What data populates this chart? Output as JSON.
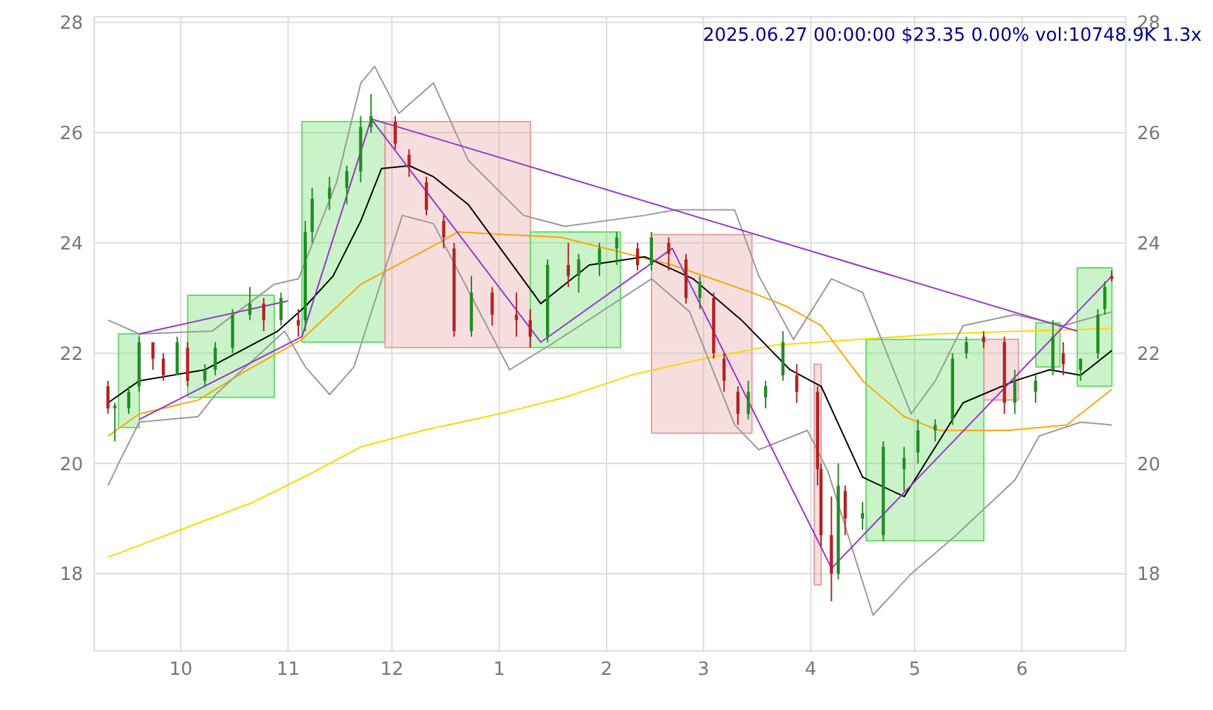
{
  "chart_data": {
    "type": "candlestick",
    "title": "2025.06.27 00:00:00 $23.35 0.00% vol:10748.9K 1.3x",
    "x": [
      "2024-09-10",
      "2024-09-12",
      "2024-09-16",
      "2024-09-19",
      "2024-09-23",
      "2024-09-26",
      "2024-09-30",
      "2024-10-03",
      "2024-10-08",
      "2024-10-11",
      "2024-10-16",
      "2024-10-21",
      "2024-10-25",
      "2024-10-30",
      "2024-11-04",
      "2024-11-06",
      "2024-11-08",
      "2024-11-13",
      "2024-11-18",
      "2024-11-22",
      "2024-11-25",
      "2024-12-02",
      "2024-12-06",
      "2024-12-11",
      "2024-12-16",
      "2024-12-19",
      "2024-12-24",
      "2024-12-30",
      "2025-01-06",
      "2025-01-10",
      "2025-01-15",
      "2025-01-21",
      "2025-01-24",
      "2025-01-30",
      "2025-02-04",
      "2025-02-10",
      "2025-02-14",
      "2025-02-19",
      "2025-02-24",
      "2025-02-28",
      "2025-03-04",
      "2025-03-07",
      "2025-03-11",
      "2025-03-14",
      "2025-03-19",
      "2025-03-24",
      "2025-03-28",
      "2025-04-03",
      "2025-04-04",
      "2025-04-07",
      "2025-04-09",
      "2025-04-11",
      "2025-04-16",
      "2025-04-22",
      "2025-04-28",
      "2025-05-02",
      "2025-05-07",
      "2025-05-12",
      "2025-05-16",
      "2025-05-21",
      "2025-05-27",
      "2025-05-30",
      "2025-06-05",
      "2025-06-10",
      "2025-06-13",
      "2025-06-18",
      "2025-06-23",
      "2025-06-25",
      "2025-06-27"
    ],
    "ohlc": [
      [
        21.4,
        21.5,
        20.9,
        21.0
      ],
      [
        21.0,
        21.1,
        20.4,
        21.05
      ],
      [
        21.0,
        21.4,
        20.9,
        21.3
      ],
      [
        21.4,
        22.3,
        21.3,
        22.2
      ],
      [
        22.2,
        22.2,
        21.7,
        21.9
      ],
      [
        21.9,
        22.0,
        21.5,
        21.6
      ],
      [
        21.6,
        22.3,
        21.6,
        22.2
      ],
      [
        22.1,
        22.2,
        21.4,
        21.5
      ],
      [
        21.5,
        21.8,
        21.4,
        21.7
      ],
      [
        21.7,
        22.2,
        21.6,
        22.1
      ],
      [
        22.1,
        22.8,
        22.0,
        22.7
      ],
      [
        22.7,
        23.2,
        22.6,
        22.9
      ],
      [
        22.9,
        23.0,
        22.4,
        22.6
      ],
      [
        22.6,
        23.1,
        22.5,
        23.0
      ],
      [
        22.6,
        22.8,
        22.3,
        22.5
      ],
      [
        22.6,
        24.4,
        22.4,
        24.2
      ],
      [
        24.2,
        25.0,
        24.0,
        24.8
      ],
      [
        24.8,
        25.2,
        24.6,
        25.0
      ],
      [
        25.0,
        25.4,
        24.7,
        25.3
      ],
      [
        25.3,
        26.3,
        25.1,
        26.1
      ],
      [
        26.1,
        26.7,
        26.0,
        26.3
      ],
      [
        26.2,
        26.3,
        25.7,
        25.8
      ],
      [
        25.6,
        25.7,
        25.2,
        25.4
      ],
      [
        25.1,
        25.2,
        24.5,
        24.6
      ],
      [
        24.4,
        24.5,
        23.9,
        24.1
      ],
      [
        23.9,
        24.0,
        22.3,
        22.4
      ],
      [
        22.4,
        23.4,
        22.3,
        23.1
      ],
      [
        23.1,
        23.2,
        22.5,
        22.7
      ],
      [
        22.7,
        23.1,
        22.3,
        22.6
      ],
      [
        22.6,
        22.8,
        22.1,
        22.3
      ],
      [
        22.3,
        23.7,
        22.2,
        23.6
      ],
      [
        23.6,
        24.0,
        23.2,
        23.4
      ],
      [
        23.4,
        23.8,
        23.1,
        23.7
      ],
      [
        23.6,
        24.0,
        23.4,
        23.9
      ],
      [
        23.9,
        24.2,
        23.6,
        24.1
      ],
      [
        23.9,
        24.0,
        23.5,
        23.6
      ],
      [
        23.6,
        24.2,
        23.5,
        24.1
      ],
      [
        24.0,
        24.1,
        23.5,
        23.8
      ],
      [
        23.7,
        23.8,
        22.9,
        23.0
      ],
      [
        23.0,
        23.4,
        22.8,
        23.3
      ],
      [
        23.0,
        23.1,
        21.9,
        22.0
      ],
      [
        21.9,
        22.0,
        21.3,
        21.5
      ],
      [
        21.3,
        21.4,
        20.7,
        20.9
      ],
      [
        20.9,
        21.5,
        20.8,
        21.3
      ],
      [
        21.2,
        21.5,
        21.0,
        21.4
      ],
      [
        21.6,
        22.4,
        21.5,
        22.2
      ],
      [
        21.6,
        21.8,
        21.1,
        21.3
      ],
      [
        21.3,
        21.4,
        19.6,
        19.9
      ],
      [
        19.9,
        20.0,
        18.5,
        18.7
      ],
      [
        18.7,
        19.4,
        17.5,
        18.0
      ],
      [
        18.0,
        20.0,
        17.9,
        19.6
      ],
      [
        19.5,
        19.6,
        18.7,
        19.0
      ],
      [
        19.0,
        19.3,
        18.8,
        19.1
      ],
      [
        18.7,
        20.4,
        18.6,
        20.3
      ],
      [
        19.9,
        20.3,
        19.5,
        20.1
      ],
      [
        20.2,
        20.8,
        20.0,
        20.6
      ],
      [
        20.6,
        20.8,
        20.4,
        20.7
      ],
      [
        20.8,
        22.0,
        20.7,
        21.9
      ],
      [
        22.0,
        22.3,
        21.9,
        22.2
      ],
      [
        22.3,
        22.4,
        22.1,
        22.2
      ],
      [
        22.2,
        22.3,
        20.9,
        21.1
      ],
      [
        21.1,
        21.7,
        20.9,
        21.5
      ],
      [
        21.3,
        21.6,
        21.1,
        21.5
      ],
      [
        21.7,
        22.6,
        21.6,
        22.3
      ],
      [
        22.0,
        22.2,
        21.6,
        21.8
      ],
      [
        21.7,
        21.9,
        21.5,
        21.9
      ],
      [
        22.0,
        22.8,
        21.9,
        22.7
      ],
      [
        22.8,
        23.3,
        22.7,
        23.2
      ],
      [
        23.4,
        23.5,
        23.3,
        23.35
      ]
    ],
    "colors": [
      "#b22222",
      "#228b22",
      "#228b22",
      "#228b22",
      "#b22222",
      "#b22222",
      "#228b22",
      "#b22222",
      "#228b22",
      "#228b22",
      "#228b22",
      "#228b22",
      "#b22222",
      "#228b22",
      "#b22222",
      "#228b22",
      "#228b22",
      "#228b22",
      "#228b22",
      "#228b22",
      "#228b22",
      "#b22222",
      "#b22222",
      "#b22222",
      "#b22222",
      "#b22222",
      "#228b22",
      "#b22222",
      "#b22222",
      "#b22222",
      "#228b22",
      "#b22222",
      "#228b22",
      "#228b22",
      "#228b22",
      "#b22222",
      "#228b22",
      "#b22222",
      "#b22222",
      "#228b22",
      "#b22222",
      "#b22222",
      "#b22222",
      "#228b22",
      "#228b22",
      "#228b22",
      "#b22222",
      "#b22222",
      "#b22222",
      "#b22222",
      "#228b22",
      "#b22222",
      "#228b22",
      "#228b22",
      "#228b22",
      "#228b22",
      "#228b22",
      "#228b22",
      "#228b22",
      "#b22222",
      "#b22222",
      "#228b22",
      "#228b22",
      "#228b22",
      "#b22222",
      "#228b22",
      "#228b22",
      "#228b22",
      "#b22222"
    ],
    "series": [
      {
        "type": "area",
        "color": "#66dd66",
        "x": [
          "2024-09-13",
          "2024-09-13",
          "2024-09-19",
          "2024-09-19",
          "2024-09-13"
        ],
        "values": [
          20.65,
          22.35,
          22.35,
          20.65,
          20.65
        ]
      },
      {
        "type": "area",
        "color": "#66dd66",
        "x": [
          "2024-10-03",
          "2024-10-03",
          "2024-10-28",
          "2024-10-28",
          "2024-10-03"
        ],
        "values": [
          21.2,
          23.05,
          23.05,
          21.2,
          21.2
        ]
      },
      {
        "type": "area",
        "color": "#66dd66",
        "x": [
          "2024-11-05",
          "2024-11-05",
          "2024-11-29",
          "2024-11-29",
          "2024-11-05"
        ],
        "values": [
          22.2,
          26.2,
          26.2,
          22.2,
          22.2
        ]
      },
      {
        "type": "area",
        "color": "#e8a0a0",
        "x": [
          "2024-11-29",
          "2024-11-29",
          "2025-01-10",
          "2025-01-10",
          "2024-11-29"
        ],
        "values": [
          22.1,
          26.2,
          26.2,
          22.1,
          22.1
        ]
      },
      {
        "type": "area",
        "color": "#66dd66",
        "x": [
          "2025-01-10",
          "2025-01-10",
          "2025-02-05",
          "2025-02-05",
          "2025-01-10"
        ],
        "values": [
          22.1,
          24.2,
          24.2,
          22.1,
          22.1
        ]
      },
      {
        "type": "area",
        "color": "#e8a0a0",
        "x": [
          "2025-02-14",
          "2025-02-14",
          "2025-03-15",
          "2025-03-15",
          "2025-02-14"
        ],
        "values": [
          20.55,
          24.15,
          24.15,
          20.55,
          20.55
        ]
      },
      {
        "type": "area",
        "color": "#e8a0a0",
        "x": [
          "2025-04-02",
          "2025-04-02",
          "2025-04-04",
          "2025-04-04",
          "2025-04-02"
        ],
        "values": [
          17.8,
          21.8,
          21.8,
          17.8,
          17.8
        ]
      },
      {
        "type": "area",
        "color": "#66dd66",
        "x": [
          "2025-04-17",
          "2025-04-17",
          "2025-05-21",
          "2025-05-21",
          "2025-04-17"
        ],
        "values": [
          18.6,
          22.25,
          22.25,
          18.6,
          18.6
        ]
      },
      {
        "type": "area",
        "color": "#e8a0a0",
        "x": [
          "2025-05-21",
          "2025-05-21",
          "2025-05-31",
          "2025-05-31",
          "2025-05-21"
        ],
        "values": [
          21.15,
          22.25,
          22.25,
          21.15,
          21.15
        ]
      },
      {
        "type": "area",
        "color": "#66dd66",
        "x": [
          "2025-06-05",
          "2025-06-05",
          "2025-06-12",
          "2025-06-12",
          "2025-06-05"
        ],
        "values": [
          21.75,
          22.55,
          22.55,
          21.75,
          21.75
        ]
      },
      {
        "type": "area",
        "color": "#66dd66",
        "x": [
          "2025-06-17",
          "2025-06-17",
          "2025-06-27",
          "2025-06-27",
          "2025-06-17"
        ],
        "values": [
          21.4,
          23.55,
          23.55,
          21.4,
          21.4
        ]
      },
      {
        "type": "line",
        "color": "#ffd700",
        "x": [
          "2024-09-10",
          "2024-10-01",
          "2024-10-22",
          "2024-11-07",
          "2024-11-22",
          "2024-12-10",
          "2025-01-01",
          "2025-01-20",
          "2025-02-08",
          "2025-03-01",
          "2025-03-22",
          "2025-04-15",
          "2025-05-08",
          "2025-06-01",
          "2025-06-27"
        ],
        "values": [
          18.3,
          18.8,
          19.3,
          19.8,
          20.3,
          20.6,
          20.9,
          21.2,
          21.6,
          21.9,
          22.15,
          22.25,
          22.35,
          22.4,
          22.45
        ]
      },
      {
        "type": "line",
        "color": "#ffa500",
        "x": [
          "2024-09-10",
          "2024-09-19",
          "2024-10-06",
          "2024-10-19",
          "2024-11-05",
          "2024-11-22",
          "2024-12-16",
          "2024-12-20",
          "2025-01-19",
          "2025-02-20",
          "2025-03-15",
          "2025-03-25",
          "2025-04-04",
          "2025-04-16",
          "2025-04-28",
          "2025-05-08",
          "2025-05-28",
          "2025-06-14",
          "2025-06-27"
        ],
        "values": [
          20.5,
          20.9,
          21.15,
          21.65,
          22.25,
          23.25,
          24.05,
          24.2,
          24.1,
          23.6,
          23.1,
          22.85,
          22.5,
          21.5,
          20.85,
          20.6,
          20.6,
          20.7,
          21.35
        ]
      },
      {
        "type": "line",
        "color": "#000000",
        "x": [
          "2024-09-10",
          "2024-09-19",
          "2024-10-08",
          "2024-10-29",
          "2024-11-06",
          "2024-11-14",
          "2024-11-22",
          "2024-11-28",
          "2024-12-06",
          "2024-12-13",
          "2024-12-23",
          "2025-01-13",
          "2025-01-19",
          "2025-01-27",
          "2025-02-12",
          "2025-02-26",
          "2025-03-12",
          "2025-03-26",
          "2025-04-04",
          "2025-04-16",
          "2025-04-28",
          "2025-05-05",
          "2025-05-15",
          "2025-05-30",
          "2025-06-09",
          "2025-06-18",
          "2025-06-27"
        ],
        "values": [
          21.1,
          21.5,
          21.7,
          22.4,
          22.85,
          23.4,
          24.4,
          25.35,
          25.4,
          25.2,
          24.7,
          22.9,
          23.2,
          23.6,
          23.75,
          23.35,
          22.6,
          21.7,
          21.4,
          19.75,
          19.4,
          20.1,
          21.1,
          21.5,
          21.7,
          21.6,
          22.05
        ]
      },
      {
        "type": "line",
        "color": "#999999",
        "x": [
          "2024-09-10",
          "2024-09-19",
          "2024-10-10",
          "2024-10-28",
          "2024-11-04",
          "2024-11-15",
          "2024-11-22",
          "2024-11-26",
          "2024-12-03",
          "2024-12-13",
          "2024-12-23",
          "2025-01-08",
          "2025-01-20",
          "2025-02-12",
          "2025-02-21",
          "2025-03-10",
          "2025-03-17",
          "2025-03-27",
          "2025-04-07",
          "2025-04-16",
          "2025-04-30",
          "2025-05-07",
          "2025-05-15",
          "2025-05-30",
          "2025-06-13",
          "2025-06-27"
        ],
        "values": [
          22.6,
          22.35,
          22.4,
          23.25,
          23.35,
          25.1,
          26.9,
          27.2,
          26.35,
          26.9,
          25.5,
          24.5,
          24.3,
          24.5,
          24.6,
          24.6,
          23.4,
          22.25,
          23.35,
          23.1,
          20.9,
          21.5,
          22.5,
          22.7,
          22.5,
          22.75
        ]
      },
      {
        "type": "line",
        "color": "#999999",
        "x": [
          "2024-09-10",
          "2024-09-13",
          "2024-09-19",
          "2024-10-06",
          "2024-10-11",
          "2024-10-31",
          "2024-11-06",
          "2024-11-13",
          "2024-11-20",
          "2024-12-04",
          "2024-12-13",
          "2025-01-04",
          "2025-01-17",
          "2025-02-14",
          "2025-02-25",
          "2025-03-10",
          "2025-03-17",
          "2025-03-31",
          "2025-04-06",
          "2025-04-19",
          "2025-04-30",
          "2025-05-13",
          "2025-05-30",
          "2025-06-06",
          "2025-06-18",
          "2025-06-27"
        ],
        "values": [
          19.6,
          20.0,
          20.75,
          20.85,
          21.25,
          22.4,
          21.75,
          21.25,
          21.75,
          24.5,
          24.35,
          21.7,
          22.2,
          23.35,
          22.75,
          20.7,
          20.25,
          20.6,
          19.85,
          17.25,
          18.0,
          18.7,
          19.7,
          20.5,
          20.75,
          20.7
        ]
      },
      {
        "type": "line",
        "color": "#9932cc",
        "x": [
          "2024-09-19",
          "2024-11-05",
          "2024-11-25",
          "2025-01-13",
          "2025-02-20",
          "2025-04-07",
          "2025-06-27"
        ],
        "values": [
          20.8,
          22.3,
          26.25,
          22.2,
          23.9,
          18.1,
          23.4
        ]
      },
      {
        "type": "line",
        "color": "#9932cc",
        "x": [
          "2024-11-25",
          "2025-06-17"
        ],
        "values": [
          26.25,
          22.4
        ]
      },
      {
        "type": "line",
        "color": "#9932cc",
        "x": [
          "2024-09-19",
          "2024-11-01"
        ],
        "values": [
          22.35,
          22.95
        ]
      }
    ],
    "xlim": [
      "2024-09-06",
      "2025-07-01"
    ],
    "xticks": [
      {
        "value": "2024-10-01",
        "label": "10"
      },
      {
        "value": "2024-11-01",
        "label": "11"
      },
      {
        "value": "2024-12-01",
        "label": "12"
      },
      {
        "value": "2025-01-01",
        "label": "1"
      },
      {
        "value": "2025-02-01",
        "label": "2"
      },
      {
        "value": "2025-03-01",
        "label": "3"
      },
      {
        "value": "2025-04-01",
        "label": "4"
      },
      {
        "value": "2025-05-01",
        "label": "5"
      },
      {
        "value": "2025-06-01",
        "label": "6"
      }
    ],
    "ylim": [
      16.6,
      28.1
    ],
    "yticks": [
      18,
      20,
      22,
      24,
      26,
      28
    ],
    "y2lim": [
      16.6,
      28.1
    ],
    "y2ticks": [
      18,
      20,
      22,
      24,
      26,
      28
    ],
    "grid": true
  }
}
